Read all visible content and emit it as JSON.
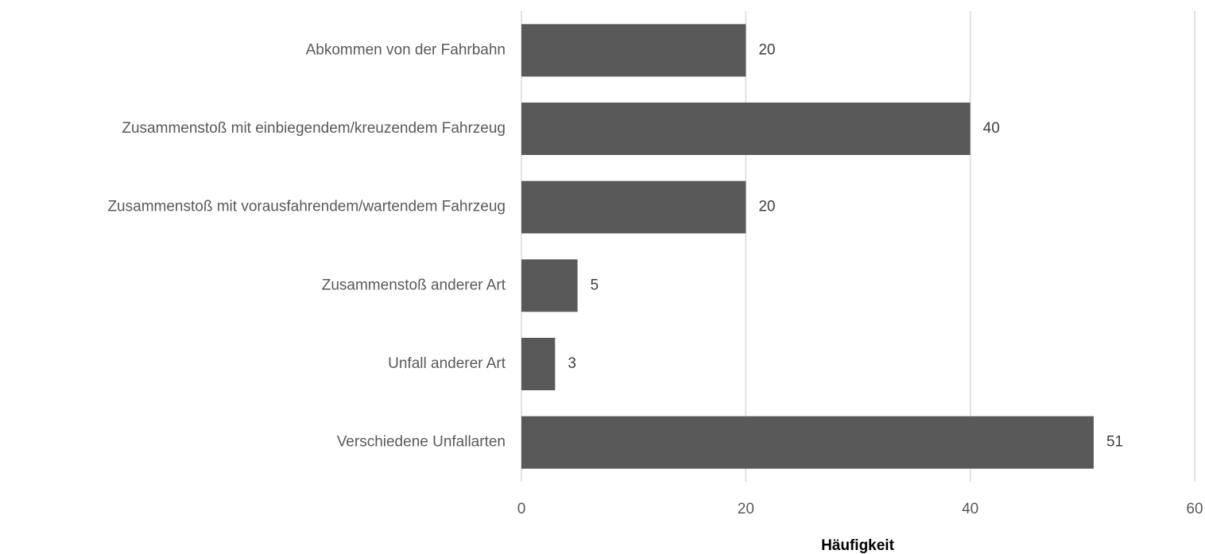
{
  "chart_data": {
    "type": "barh",
    "categories": [
      "Abkommen von der Fahrbahn",
      "Zusammenstoß mit einbiegendem/kreuzendem Fahrzeug",
      "Zusammenstoß mit vorausfahrendem/wartendem Fahrzeug",
      "Zusammenstoß anderer Art",
      "Unfall anderer Art",
      "Verschiedene Unfallarten"
    ],
    "values": [
      20,
      40,
      20,
      5,
      3,
      51
    ],
    "color": "#595959",
    "xlabel": "Häufigkeit",
    "xlim": [
      0,
      60
    ],
    "xticks": [
      0,
      20,
      40,
      60
    ],
    "grid": true
  }
}
